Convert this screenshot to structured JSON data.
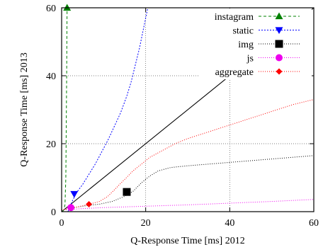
{
  "chart_data": {
    "type": "line",
    "xlabel": "Q-Response Time [ms] 2012",
    "ylabel": "Q-Response Time [ms] 2013",
    "xlim": [
      0,
      60
    ],
    "ylim": [
      0,
      60
    ],
    "xticks": [
      0,
      20,
      40,
      60
    ],
    "yticks": [
      0,
      20,
      40,
      60
    ],
    "grid": true,
    "legend_position": "top-right",
    "diagonal": {
      "x": [
        0,
        60
      ],
      "y": [
        0,
        60
      ],
      "color": "#000000"
    },
    "series": [
      {
        "name": "instagram",
        "color": "#008000",
        "dash": "4,3",
        "marker": "triangle-up",
        "x": [
          0.2,
          0.5,
          0.8,
          1.0,
          1.1,
          1.2,
          1.25,
          1.3
        ],
        "y": [
          0,
          0.5,
          2,
          10,
          25,
          40,
          52,
          60
        ],
        "marker_point": [
          1.3,
          60
        ]
      },
      {
        "name": "static",
        "color": "#0000ff",
        "dash": "2,2",
        "marker": "triangle-down",
        "x": [
          1.5,
          2.5,
          3.5,
          5,
          6.5,
          8,
          9.5,
          11,
          12.5,
          14,
          15.5,
          16.5,
          17.5,
          18.5,
          19.5,
          20.5
        ],
        "y": [
          0,
          3,
          5.5,
          8,
          11,
          14,
          17.5,
          21,
          25,
          29,
          34,
          38,
          43,
          48,
          54,
          60
        ],
        "marker_point": [
          3,
          5.2
        ]
      },
      {
        "name": "img",
        "color": "#000000",
        "dash": "1,2",
        "marker": "square",
        "x": [
          0,
          3,
          6,
          9,
          12,
          15,
          17,
          19,
          21,
          23,
          26,
          30,
          35,
          40,
          45,
          50,
          55,
          60
        ],
        "y": [
          0.5,
          1.2,
          1.8,
          2.2,
          3,
          4.5,
          6,
          8.5,
          10.5,
          12,
          13,
          13.5,
          14,
          14.5,
          15,
          15.5,
          16,
          16.5
        ],
        "marker_point": [
          15.5,
          5.8
        ]
      },
      {
        "name": "js",
        "color": "#ee00ee",
        "dash": "1,2",
        "marker": "circle",
        "x": [
          0,
          5,
          10,
          20,
          30,
          40,
          50,
          60
        ],
        "y": [
          0.5,
          0.9,
          1.2,
          1.6,
          2.0,
          2.5,
          3.0,
          3.6
        ],
        "marker_point": [
          2.2,
          1.2
        ]
      },
      {
        "name": "aggregate",
        "color": "#ff0000",
        "dash": "1,2",
        "marker": "diamond",
        "x": [
          0,
          3,
          6,
          9,
          11,
          13,
          15,
          17,
          19,
          21,
          24,
          27,
          30,
          35,
          40,
          45,
          50,
          55,
          60
        ],
        "y": [
          0.5,
          1.2,
          2.0,
          3,
          4.5,
          7,
          9.5,
          12,
          14,
          16,
          18,
          20,
          21.5,
          23.5,
          25.5,
          27.5,
          29.5,
          31.5,
          33
        ],
        "marker_point": [
          6.5,
          2.2
        ]
      }
    ]
  }
}
